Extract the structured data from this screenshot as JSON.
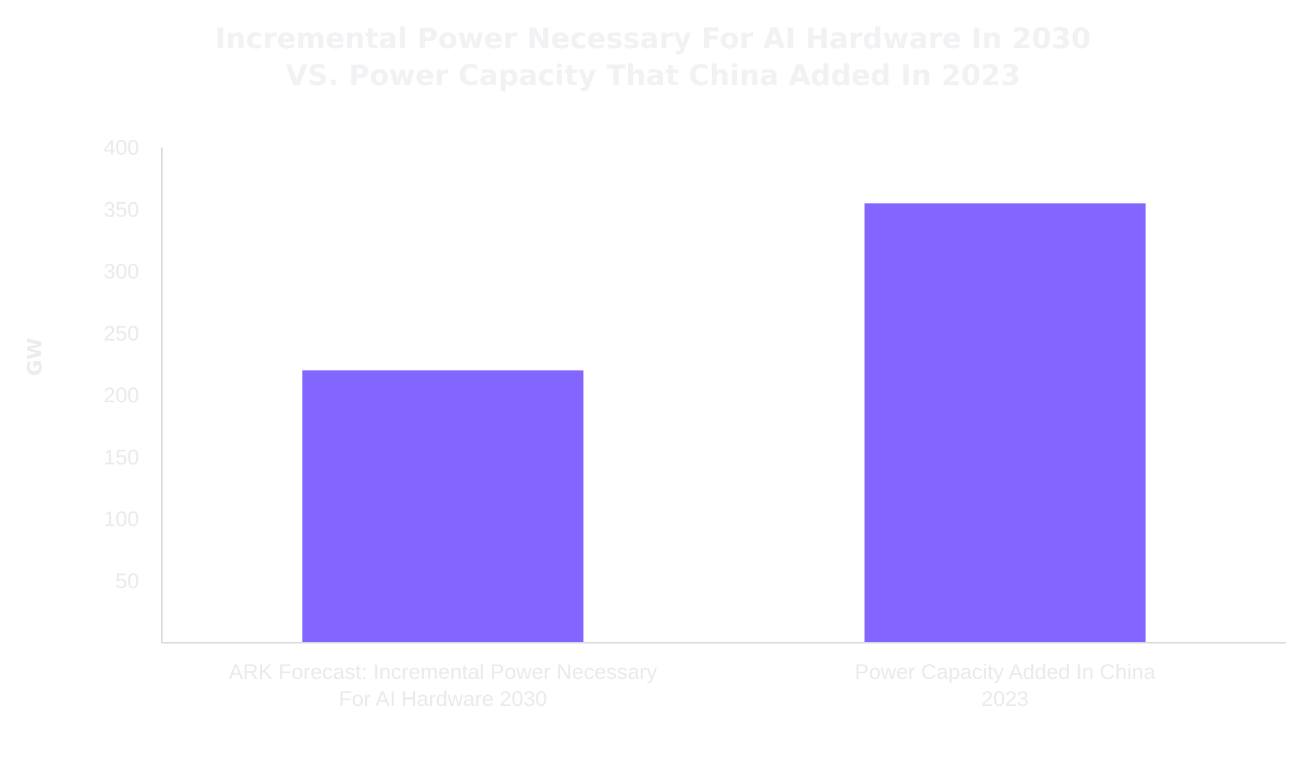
{
  "chart_data": {
    "type": "bar",
    "title": [
      "Incremental Power Necessary For AI Hardware In 2030",
      "VS. Power Capacity That China Added In 2023"
    ],
    "ylabel": "GW",
    "xlabel": "",
    "categories": [
      [
        "ARK Forecast: Incremental Power Necessary",
        "For AI Hardware 2030"
      ],
      [
        "Power Capacity Added In China",
        "2023"
      ]
    ],
    "values": [
      220,
      355
    ],
    "ylim": [
      0,
      400
    ],
    "yticks": [
      50,
      100,
      150,
      200,
      250,
      300,
      350,
      400
    ],
    "grid": false,
    "legend": "none",
    "bar_color": "#8266ff",
    "axis_color": "#d8d8de"
  }
}
